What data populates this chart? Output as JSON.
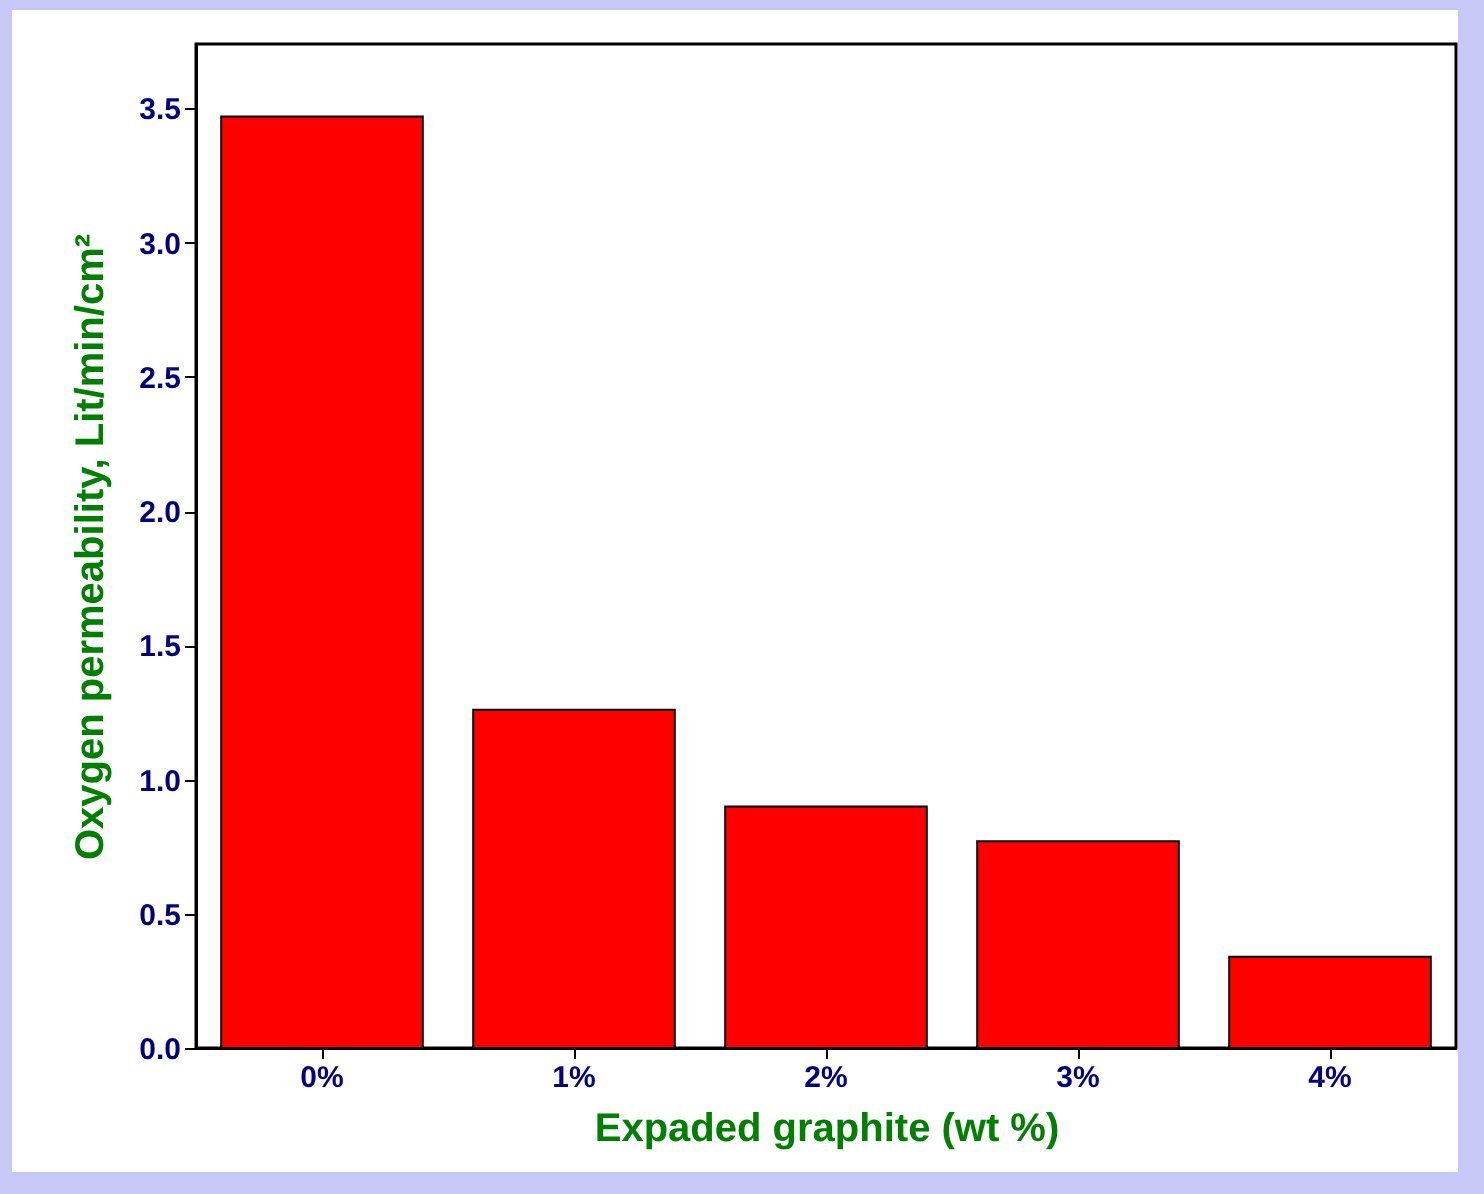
{
  "chart_data": {
    "type": "bar",
    "xlabel": "Expaded graphite (wt %)",
    "ylabel": "Oxygen permeability, Lit/min/cm²",
    "categories": [
      "0%",
      "1%",
      "2%",
      "3%",
      "4%"
    ],
    "values": [
      3.47,
      1.26,
      0.9,
      0.77,
      0.34
    ],
    "color": "#ff0000",
    "ylim": [
      0,
      3.74
    ],
    "yticks": [
      {
        "value": 0,
        "label": "0.0"
      },
      {
        "value": 0.5,
        "label": "0.5"
      },
      {
        "value": 1,
        "label": "1.0"
      },
      {
        "value": 1.5,
        "label": "1.5"
      },
      {
        "value": 2,
        "label": "2.0"
      },
      {
        "value": 2.5,
        "label": "2.5"
      },
      {
        "value": 3,
        "label": "3.0"
      },
      {
        "value": 3.5,
        "label": "3.5"
      }
    ],
    "grid": false
  }
}
